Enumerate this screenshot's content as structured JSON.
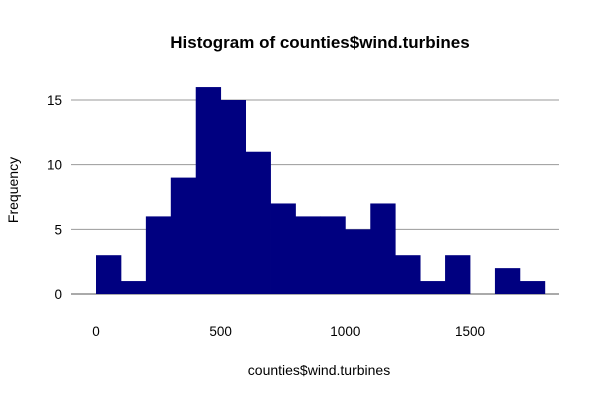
{
  "chart_data": {
    "type": "bar",
    "title": "Histogram of counties$wind.turbines",
    "xlabel": "counties$wind.turbines",
    "ylabel": "Frequency",
    "bin_width": 100,
    "bins": [
      {
        "start": 0,
        "end": 100,
        "count": 3
      },
      {
        "start": 100,
        "end": 200,
        "count": 1
      },
      {
        "start": 200,
        "end": 300,
        "count": 6
      },
      {
        "start": 300,
        "end": 400,
        "count": 9
      },
      {
        "start": 400,
        "end": 500,
        "count": 16
      },
      {
        "start": 500,
        "end": 600,
        "count": 15
      },
      {
        "start": 600,
        "end": 700,
        "count": 11
      },
      {
        "start": 700,
        "end": 800,
        "count": 7
      },
      {
        "start": 800,
        "end": 900,
        "count": 6
      },
      {
        "start": 900,
        "end": 1000,
        "count": 6
      },
      {
        "start": 1000,
        "end": 1100,
        "count": 5
      },
      {
        "start": 1100,
        "end": 1200,
        "count": 7
      },
      {
        "start": 1200,
        "end": 1300,
        "count": 3
      },
      {
        "start": 1300,
        "end": 1400,
        "count": 1
      },
      {
        "start": 1400,
        "end": 1500,
        "count": 3
      },
      {
        "start": 1500,
        "end": 1600,
        "count": 0
      },
      {
        "start": 1600,
        "end": 1700,
        "count": 2
      },
      {
        "start": 1700,
        "end": 1800,
        "count": 1
      }
    ],
    "xlim": [
      0,
      1800
    ],
    "ylim": [
      0,
      16
    ],
    "x_ticks": [
      0,
      500,
      1000,
      1500
    ],
    "y_ticks": [
      0,
      5,
      10,
      15
    ],
    "grid": "horizontal",
    "legend": "none",
    "bar_color": "#000080"
  }
}
